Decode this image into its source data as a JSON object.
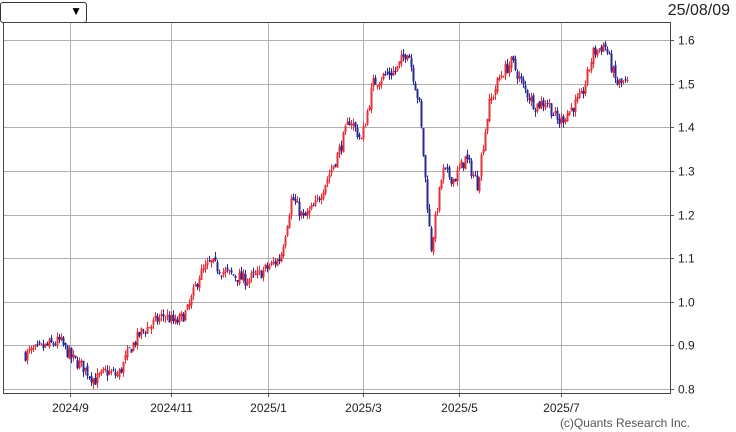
{
  "header": {
    "select_value": "",
    "date": "25/08/09"
  },
  "footer": {
    "credit": "(c)Quants Research Inc."
  },
  "colors": {
    "up": "#e8303a",
    "down": "#2a2a96",
    "grid": "#b0b0b0"
  },
  "chart_data": {
    "type": "candlestick",
    "title": "",
    "xlabel": "",
    "ylabel": "",
    "ylim": [
      0.8,
      1.6
    ],
    "y_ticks": [
      "1.6",
      "1.5",
      "1.4",
      "1.3",
      "1.2",
      "1.1",
      "1.0",
      "0.9",
      "0.8"
    ],
    "x_ticks": [
      "2024/9",
      "2024/11",
      "2025/1",
      "2025/3",
      "2025/5",
      "2025/7"
    ],
    "grid": true,
    "close_path": [
      [
        "2024-08-05",
        0.88
      ],
      [
        "2024-08-12",
        0.89
      ],
      [
        "2024-08-19",
        0.9
      ],
      [
        "2024-08-26",
        0.91
      ],
      [
        "2024-09-02",
        0.87
      ],
      [
        "2024-09-09",
        0.85
      ],
      [
        "2024-09-16",
        0.82
      ],
      [
        "2024-09-23",
        0.84
      ],
      [
        "2024-09-30",
        0.83
      ],
      [
        "2024-10-07",
        0.89
      ],
      [
        "2024-10-14",
        0.93
      ],
      [
        "2024-10-21",
        0.95
      ],
      [
        "2024-10-28",
        0.97
      ],
      [
        "2024-11-04",
        0.95
      ],
      [
        "2024-11-11",
        0.98
      ],
      [
        "2024-11-18",
        1.06
      ],
      [
        "2024-11-25",
        1.09
      ],
      [
        "2024-12-02",
        1.07
      ],
      [
        "2024-12-09",
        1.06
      ],
      [
        "2024-12-16",
        1.05
      ],
      [
        "2024-12-23",
        1.06
      ],
      [
        "2025-01-06",
        1.1
      ],
      [
        "2025-01-13",
        1.24
      ],
      [
        "2025-01-20",
        1.19
      ],
      [
        "2025-01-27",
        1.22
      ],
      [
        "2025-02-03",
        1.28
      ],
      [
        "2025-02-10",
        1.34
      ],
      [
        "2025-02-17",
        1.42
      ],
      [
        "2025-02-24",
        1.37
      ],
      [
        "2025-03-03",
        1.5
      ],
      [
        "2025-03-10",
        1.52
      ],
      [
        "2025-03-17",
        1.53
      ],
      [
        "2025-03-24",
        1.58
      ],
      [
        "2025-03-31",
        1.45
      ],
      [
        "2025-04-07",
        1.12
      ],
      [
        "2025-04-14",
        1.3
      ],
      [
        "2025-04-21",
        1.28
      ],
      [
        "2025-04-28",
        1.33
      ],
      [
        "2025-05-05",
        1.27
      ],
      [
        "2025-05-12",
        1.45
      ],
      [
        "2025-05-19",
        1.52
      ],
      [
        "2025-05-26",
        1.55
      ],
      [
        "2025-06-02",
        1.49
      ],
      [
        "2025-06-09",
        1.45
      ],
      [
        "2025-06-16",
        1.46
      ],
      [
        "2025-06-23",
        1.41
      ],
      [
        "2025-06-30",
        1.44
      ],
      [
        "2025-07-07",
        1.47
      ],
      [
        "2025-07-14",
        1.57
      ],
      [
        "2025-07-21",
        1.59
      ],
      [
        "2025-07-28",
        1.5
      ],
      [
        "2025-08-04",
        1.5
      ]
    ]
  }
}
